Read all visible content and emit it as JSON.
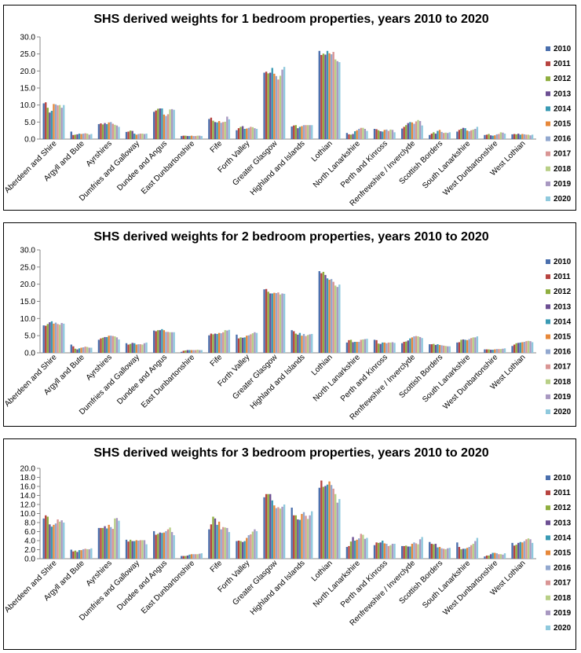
{
  "chart_data": [
    {
      "type": "bar",
      "title": "SHS derived weights for 1 bedroom properties, years 2010 to 2020",
      "xlabel": "",
      "ylabel": "",
      "ylim": [
        0,
        30
      ],
      "ytick_step": 5,
      "ytick_decimals": 1,
      "grid": false,
      "legend": "right",
      "categories": [
        "Aberdeen and Shire",
        "Argyll and Bute",
        "Ayrshires",
        "Dumfries and Galloway",
        "Dundee and Angus",
        "East Dunbartonshire",
        "Fife",
        "Forth Valley",
        "Greater Glasgow",
        "Highland and Islands",
        "Lothian",
        "North Lanarkshire",
        "Perth and Kinross",
        "Renfrewshire / Inverclyde",
        "Scottish Borders",
        "South Lanarkshire",
        "West Dunbartonshire",
        "West Lothian"
      ],
      "series": [
        {
          "name": "2010",
          "values": [
            10.5,
            2.2,
            4.4,
            2.1,
            8.0,
            0.9,
            5.9,
            2.6,
            19.5,
            3.7,
            25.9,
            1.8,
            3.0,
            3.1,
            1.2,
            2.2,
            1.2,
            1.4
          ]
        },
        {
          "name": "2011",
          "values": [
            10.8,
            1.2,
            4.6,
            2.2,
            8.4,
            1.0,
            6.3,
            3.2,
            19.8,
            4.0,
            24.7,
            1.4,
            2.9,
            3.6,
            1.6,
            2.7,
            1.3,
            1.5
          ]
        },
        {
          "name": "2012",
          "values": [
            9.2,
            1.3,
            4.3,
            2.5,
            8.9,
            1.0,
            5.4,
            3.6,
            19.3,
            4.1,
            25.1,
            1.3,
            2.6,
            4.1,
            2.0,
            3.0,
            1.5,
            1.4
          ]
        },
        {
          "name": "2013",
          "values": [
            7.8,
            1.4,
            4.7,
            2.4,
            9.0,
            0.9,
            5.0,
            3.8,
            19.5,
            3.2,
            24.8,
            1.5,
            2.3,
            4.7,
            1.6,
            3.3,
            1.1,
            1.6
          ]
        },
        {
          "name": "2014",
          "values": [
            8.3,
            1.6,
            4.4,
            1.6,
            9.0,
            0.9,
            4.9,
            3.0,
            20.9,
            3.6,
            25.9,
            2.3,
            2.2,
            5.0,
            2.4,
            3.2,
            1.0,
            1.3
          ]
        },
        {
          "name": "2015",
          "values": [
            10.3,
            1.5,
            4.9,
            1.3,
            7.2,
            1.0,
            5.3,
            3.1,
            19.2,
            3.8,
            25.2,
            2.6,
            2.7,
            4.9,
            2.7,
            2.5,
            1.1,
            1.5
          ]
        },
        {
          "name": "2016",
          "values": [
            10.2,
            1.6,
            5.0,
            1.5,
            6.8,
            0.9,
            4.8,
            3.3,
            18.5,
            4.1,
            24.9,
            3.0,
            2.8,
            4.5,
            2.1,
            2.3,
            1.4,
            1.4
          ]
        },
        {
          "name": "2017",
          "values": [
            9.9,
            1.7,
            4.5,
            1.6,
            7.3,
            0.9,
            5.0,
            3.6,
            17.5,
            4.1,
            25.6,
            3.3,
            2.4,
            5.2,
            1.8,
            2.6,
            1.5,
            1.3
          ]
        },
        {
          "name": "2018",
          "values": [
            10.0,
            1.6,
            4.2,
            1.6,
            8.7,
            1.0,
            5.1,
            3.5,
            18.6,
            4.1,
            23.4,
            3.3,
            2.8,
            5.6,
            1.9,
            2.8,
            2.0,
            1.3
          ]
        },
        {
          "name": "2019",
          "values": [
            9.2,
            1.3,
            4.0,
            1.5,
            8.8,
            1.0,
            6.6,
            3.2,
            20.4,
            4.1,
            22.9,
            3.0,
            2.7,
            5.3,
            1.8,
            3.0,
            1.9,
            1.1
          ]
        },
        {
          "name": "2020",
          "values": [
            10.0,
            1.5,
            3.6,
            1.6,
            8.6,
            0.9,
            5.8,
            3.0,
            21.2,
            4.1,
            22.6,
            2.4,
            2.0,
            4.0,
            2.0,
            3.6,
            1.6,
            1.3
          ]
        }
      ]
    },
    {
      "type": "bar",
      "title": "SHS derived weights for 2 bedroom properties, years 2010 to 2020",
      "xlabel": "",
      "ylabel": "",
      "ylim": [
        0,
        30
      ],
      "ytick_step": 5,
      "ytick_decimals": 1,
      "grid": false,
      "legend": "right",
      "categories": [
        "Aberdeen and Shire",
        "Argyll and Bute",
        "Ayrshires",
        "Dumfries and Galloway",
        "Dundee and Angus",
        "East Dunbartonshire",
        "Fife",
        "Forth Valley",
        "Greater Glasgow",
        "Highland and Islands",
        "Lothian",
        "North Lanarkshire",
        "Perth and Kinross",
        "Renfrewshire / Inverclyde",
        "Scottish Borders",
        "South Lanarkshire",
        "West Dunbartonshire",
        "West Lothian"
      ],
      "series": [
        {
          "name": "2010",
          "values": [
            8.0,
            2.4,
            3.8,
            2.8,
            6.5,
            0.3,
            5.1,
            5.3,
            18.5,
            6.6,
            23.8,
            3.0,
            3.8,
            2.8,
            2.5,
            3.0,
            1.0,
            2.0
          ]
        },
        {
          "name": "2011",
          "values": [
            7.9,
            1.9,
            4.2,
            2.4,
            6.3,
            0.6,
            5.6,
            4.2,
            18.6,
            6.3,
            23.2,
            3.7,
            3.7,
            3.2,
            2.5,
            3.1,
            1.0,
            2.4
          ]
        },
        {
          "name": "2012",
          "values": [
            8.4,
            1.2,
            4.4,
            2.6,
            6.6,
            0.7,
            5.4,
            4.5,
            17.8,
            5.6,
            23.6,
            3.8,
            2.7,
            3.3,
            2.6,
            3.8,
            1.0,
            2.8
          ]
        },
        {
          "name": "2013",
          "values": [
            8.9,
            1.0,
            4.6,
            2.9,
            6.6,
            0.8,
            5.6,
            4.4,
            17.3,
            5.3,
            22.7,
            3.1,
            2.6,
            3.6,
            2.3,
            3.9,
            0.9,
            2.9
          ]
        },
        {
          "name": "2014",
          "values": [
            9.2,
            1.3,
            4.6,
            2.8,
            6.9,
            0.8,
            5.5,
            4.5,
            17.3,
            5.8,
            21.7,
            3.2,
            3.0,
            4.2,
            2.5,
            3.8,
            0.9,
            3.0
          ]
        },
        {
          "name": "2015",
          "values": [
            8.5,
            1.5,
            5.0,
            2.4,
            6.6,
            0.8,
            5.8,
            5.0,
            17.5,
            5.0,
            21.3,
            3.2,
            3.0,
            4.5,
            2.3,
            3.7,
            1.0,
            3.1
          ]
        },
        {
          "name": "2016",
          "values": [
            8.8,
            1.6,
            5.0,
            2.5,
            6.1,
            0.8,
            5.7,
            5.1,
            17.4,
            5.5,
            21.5,
            3.2,
            2.8,
            4.8,
            2.2,
            4.0,
            1.1,
            3.2
          ]
        },
        {
          "name": "2017",
          "values": [
            8.4,
            1.8,
            4.9,
            2.5,
            6.1,
            0.8,
            6.0,
            5.4,
            17.6,
            4.9,
            20.7,
            3.8,
            3.0,
            4.9,
            2.1,
            4.3,
            1.1,
            3.4
          ]
        },
        {
          "name": "2018",
          "values": [
            8.2,
            1.7,
            4.8,
            2.4,
            6.0,
            0.9,
            6.6,
            5.7,
            17.0,
            5.2,
            19.6,
            3.9,
            3.0,
            4.8,
            2.0,
            4.5,
            1.1,
            3.5
          ]
        },
        {
          "name": "2019",
          "values": [
            8.7,
            1.5,
            4.5,
            2.8,
            6.0,
            0.8,
            6.5,
            6.0,
            17.3,
            5.4,
            19.2,
            4.0,
            3.1,
            4.6,
            1.9,
            4.5,
            1.2,
            3.4
          ]
        },
        {
          "name": "2020",
          "values": [
            8.5,
            1.5,
            3.9,
            3.0,
            6.0,
            0.8,
            6.7,
            5.8,
            17.2,
            5.5,
            19.9,
            4.1,
            2.9,
            4.3,
            1.9,
            4.8,
            1.3,
            3.1
          ]
        }
      ]
    },
    {
      "type": "bar",
      "title": "SHS derived weights for 3 bedroom properties, years 2010 to 2020",
      "xlabel": "",
      "ylabel": "",
      "ylim": [
        0,
        20
      ],
      "ytick_step": 2,
      "ytick_decimals": 1,
      "grid": false,
      "legend": "right",
      "categories": [
        "Aberdeen and Shire",
        "Argyll and Bute",
        "Ayrshires",
        "Dumfries and Galloway",
        "Dundee and Angus",
        "East Dunbartonshire",
        "Fife",
        "Forth Valley",
        "Greater Glasgow",
        "Highland and Islands",
        "Lothian",
        "North Lanarkshire",
        "Perth and Kinross",
        "Renfrewshire / Inverclyde",
        "Scottish Borders",
        "South Lanarkshire",
        "West Dunbartonshire",
        "West Lothian"
      ],
      "series": [
        {
          "name": "2010",
          "values": [
            8.9,
            2.0,
            6.8,
            4.2,
            6.1,
            0.6,
            6.5,
            3.9,
            13.6,
            11.3,
            15.7,
            2.6,
            3.0,
            2.8,
            3.7,
            3.6,
            0.5,
            3.5
          ]
        },
        {
          "name": "2011",
          "values": [
            9.6,
            1.6,
            6.8,
            3.8,
            5.3,
            0.6,
            7.6,
            4.0,
            14.3,
            9.6,
            17.3,
            2.8,
            3.6,
            2.8,
            3.3,
            2.6,
            0.7,
            2.9
          ]
        },
        {
          "name": "2012",
          "values": [
            9.3,
            1.8,
            6.8,
            4.2,
            5.5,
            0.6,
            9.3,
            3.9,
            14.3,
            9.6,
            15.9,
            3.8,
            3.5,
            2.9,
            3.2,
            2.1,
            0.7,
            3.1
          ]
        },
        {
          "name": "2013",
          "values": [
            7.6,
            1.5,
            7.2,
            3.9,
            5.8,
            0.7,
            8.9,
            3.7,
            14.3,
            8.7,
            16.1,
            4.8,
            3.6,
            2.7,
            3.3,
            2.2,
            1.0,
            3.5
          ]
        },
        {
          "name": "2014",
          "values": [
            7.1,
            1.9,
            6.7,
            3.9,
            5.7,
            0.9,
            7.5,
            3.9,
            12.9,
            8.6,
            16.4,
            4.0,
            4.0,
            2.7,
            2.5,
            2.2,
            1.3,
            3.7
          ]
        },
        {
          "name": "2015",
          "values": [
            7.5,
            1.9,
            7.5,
            4.1,
            5.8,
            1.0,
            8.2,
            4.6,
            11.8,
            9.9,
            17.1,
            4.2,
            3.4,
            3.3,
            2.6,
            2.4,
            1.3,
            3.6
          ]
        },
        {
          "name": "2016",
          "values": [
            7.8,
            2.1,
            7.0,
            4.0,
            6.1,
            1.0,
            6.5,
            5.2,
            11.2,
            10.3,
            16.3,
            4.5,
            3.3,
            3.6,
            2.3,
            2.6,
            1.2,
            3.9
          ]
        },
        {
          "name": "2017",
          "values": [
            8.7,
            2.2,
            6.6,
            4.1,
            6.5,
            1.0,
            7.0,
            5.4,
            11.4,
            9.5,
            15.5,
            5.5,
            2.8,
            3.4,
            2.2,
            3.0,
            1.0,
            4.3
          ]
        },
        {
          "name": "2018",
          "values": [
            8.2,
            2.1,
            8.9,
            4.1,
            6.9,
            1.0,
            6.9,
            6.0,
            11.1,
            8.8,
            14.3,
            5.3,
            3.0,
            3.2,
            2.1,
            3.3,
            1.0,
            4.5
          ]
        },
        {
          "name": "2019",
          "values": [
            8.5,
            2.1,
            9.0,
            4.1,
            5.9,
            1.1,
            6.8,
            6.5,
            11.5,
            9.6,
            12.4,
            4.4,
            3.3,
            4.3,
            2.3,
            3.9,
            0.9,
            4.3
          ]
        },
        {
          "name": "2020",
          "values": [
            8.0,
            2.3,
            8.4,
            3.2,
            5.2,
            1.2,
            5.9,
            6.1,
            12.0,
            10.5,
            13.2,
            4.6,
            3.3,
            4.8,
            2.4,
            4.6,
            1.2,
            3.5
          ]
        }
      ]
    }
  ],
  "series_colors": [
    "#4a6fad",
    "#b7433f",
    "#8fae3f",
    "#6c4f93",
    "#3a9ab4",
    "#e7883a",
    "#92a8cf",
    "#d99594",
    "#b8cf86",
    "#a898c1",
    "#8fc9dd"
  ]
}
